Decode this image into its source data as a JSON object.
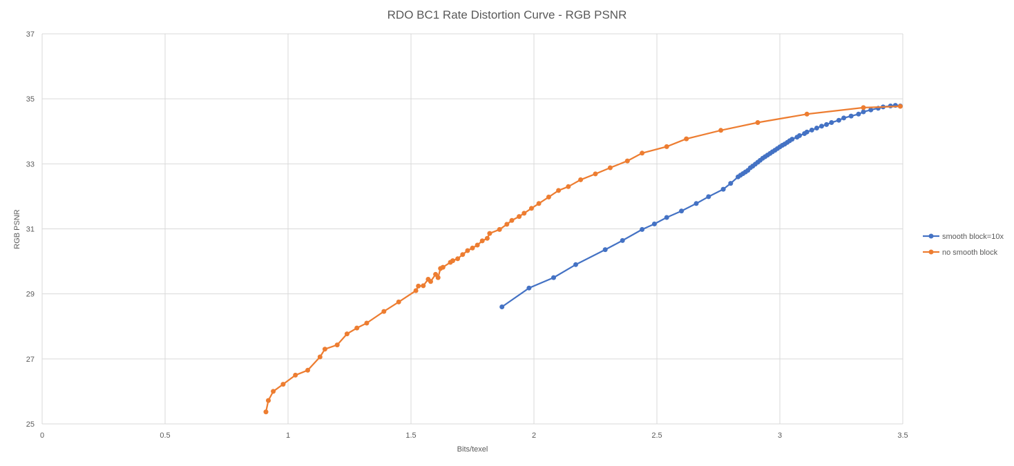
{
  "chart_data": {
    "type": "scatter",
    "title": "RDO BC1 Rate Distortion Curve - RGB PSNR",
    "xlabel": "Bits/texel",
    "ylabel": "RGB PSNR",
    "xlim": [
      0,
      3.5
    ],
    "ylim": [
      25,
      37
    ],
    "x_ticks": [
      "0",
      "0.5",
      "1",
      "1.5",
      "2",
      "2.5",
      "3",
      "3.5"
    ],
    "y_ticks": [
      "25",
      "27",
      "29",
      "31",
      "33",
      "35",
      "37"
    ],
    "grid": "on",
    "legend_position": "right",
    "series": [
      {
        "name": "smooth block=10x",
        "color": "#4472c4",
        "points": [
          [
            1.87,
            28.6
          ],
          [
            1.98,
            29.18
          ],
          [
            2.08,
            29.5
          ],
          [
            2.17,
            29.9
          ],
          [
            2.29,
            30.36
          ],
          [
            2.36,
            30.64
          ],
          [
            2.44,
            30.98
          ],
          [
            2.49,
            31.15
          ],
          [
            2.54,
            31.35
          ],
          [
            2.6,
            31.55
          ],
          [
            2.66,
            31.78
          ],
          [
            2.71,
            31.99
          ],
          [
            2.77,
            32.22
          ],
          [
            2.8,
            32.4
          ],
          [
            2.83,
            32.6
          ],
          [
            2.84,
            32.65
          ],
          [
            2.85,
            32.7
          ],
          [
            2.86,
            32.75
          ],
          [
            2.87,
            32.8
          ],
          [
            2.88,
            32.88
          ],
          [
            2.89,
            32.93
          ],
          [
            2.9,
            32.99
          ],
          [
            2.91,
            33.05
          ],
          [
            2.92,
            33.11
          ],
          [
            2.93,
            33.17
          ],
          [
            2.94,
            33.22
          ],
          [
            2.95,
            33.27
          ],
          [
            2.96,
            33.32
          ],
          [
            2.97,
            33.37
          ],
          [
            2.98,
            33.42
          ],
          [
            2.99,
            33.47
          ],
          [
            3.0,
            33.52
          ],
          [
            3.01,
            33.57
          ],
          [
            3.02,
            33.61
          ],
          [
            3.03,
            33.66
          ],
          [
            3.04,
            33.71
          ],
          [
            3.05,
            33.76
          ],
          [
            3.07,
            33.82
          ],
          [
            3.08,
            33.87
          ],
          [
            3.1,
            33.93
          ],
          [
            3.11,
            33.98
          ],
          [
            3.13,
            34.04
          ],
          [
            3.15,
            34.1
          ],
          [
            3.17,
            34.16
          ],
          [
            3.19,
            34.21
          ],
          [
            3.21,
            34.27
          ],
          [
            3.24,
            34.34
          ],
          [
            3.26,
            34.41
          ],
          [
            3.29,
            34.47
          ],
          [
            3.32,
            34.53
          ],
          [
            3.34,
            34.6
          ],
          [
            3.37,
            34.66
          ],
          [
            3.4,
            34.71
          ],
          [
            3.42,
            34.75
          ],
          [
            3.45,
            34.78
          ],
          [
            3.47,
            34.8
          ],
          [
            3.49,
            34.78
          ]
        ]
      },
      {
        "name": "no smooth block",
        "color": "#ed7d31",
        "points": [
          [
            0.91,
            25.37
          ],
          [
            0.92,
            25.72
          ],
          [
            0.94,
            26.0
          ],
          [
            0.98,
            26.22
          ],
          [
            1.03,
            26.5
          ],
          [
            1.08,
            26.65
          ],
          [
            1.13,
            27.06
          ],
          [
            1.15,
            27.3
          ],
          [
            1.2,
            27.43
          ],
          [
            1.24,
            27.77
          ],
          [
            1.28,
            27.95
          ],
          [
            1.32,
            28.1
          ],
          [
            1.39,
            28.46
          ],
          [
            1.45,
            28.75
          ],
          [
            1.52,
            29.1
          ],
          [
            1.53,
            29.24
          ],
          [
            1.55,
            29.25
          ],
          [
            1.57,
            29.45
          ],
          [
            1.58,
            29.38
          ],
          [
            1.6,
            29.6
          ],
          [
            1.61,
            29.5
          ],
          [
            1.62,
            29.78
          ],
          [
            1.63,
            29.82
          ],
          [
            1.66,
            29.97
          ],
          [
            1.67,
            30.02
          ],
          [
            1.69,
            30.08
          ],
          [
            1.71,
            30.21
          ],
          [
            1.73,
            30.33
          ],
          [
            1.75,
            30.41
          ],
          [
            1.77,
            30.5
          ],
          [
            1.79,
            30.63
          ],
          [
            1.81,
            30.71
          ],
          [
            1.82,
            30.86
          ],
          [
            1.86,
            30.98
          ],
          [
            1.89,
            31.14
          ],
          [
            1.91,
            31.26
          ],
          [
            1.94,
            31.38
          ],
          [
            1.96,
            31.48
          ],
          [
            1.99,
            31.63
          ],
          [
            2.02,
            31.78
          ],
          [
            2.06,
            31.98
          ],
          [
            2.1,
            32.18
          ],
          [
            2.14,
            32.3
          ],
          [
            2.19,
            32.51
          ],
          [
            2.25,
            32.69
          ],
          [
            2.31,
            32.88
          ],
          [
            2.38,
            33.09
          ],
          [
            2.44,
            33.33
          ],
          [
            2.54,
            33.53
          ],
          [
            2.62,
            33.77
          ],
          [
            2.76,
            34.03
          ],
          [
            2.91,
            34.27
          ],
          [
            3.11,
            34.53
          ],
          [
            3.34,
            34.73
          ],
          [
            3.49,
            34.77
          ]
        ]
      }
    ]
  }
}
